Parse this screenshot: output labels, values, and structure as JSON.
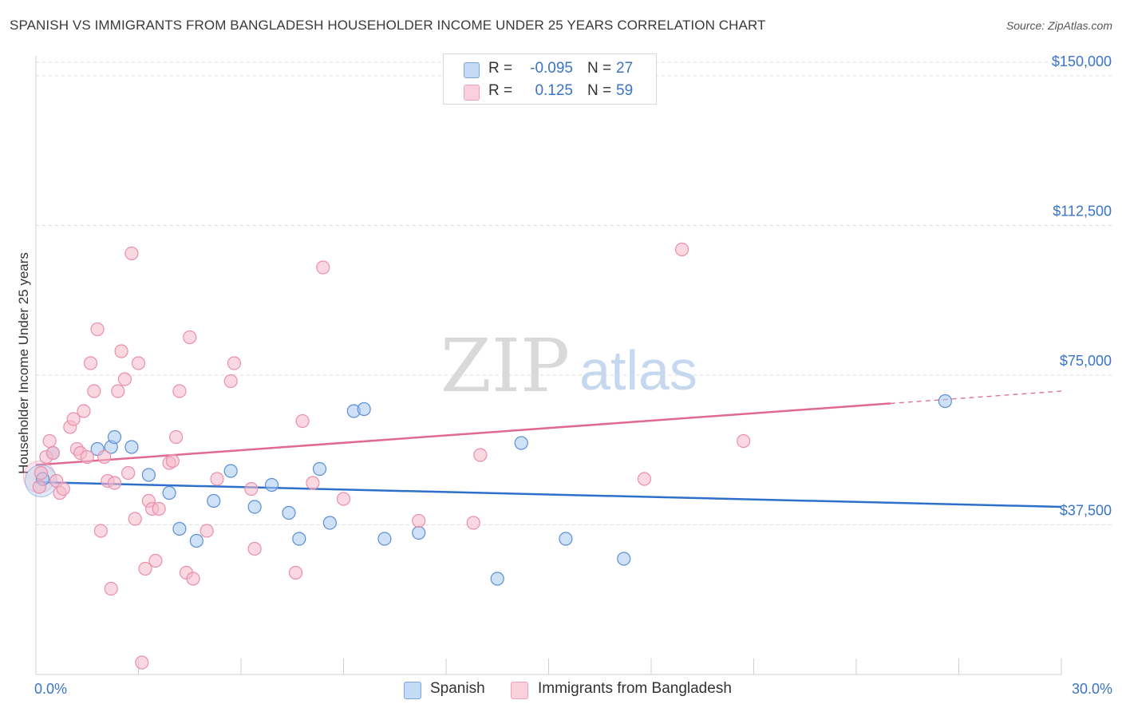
{
  "title": "SPANISH VS IMMIGRANTS FROM BANGLADESH HOUSEHOLDER INCOME UNDER 25 YEARS CORRELATION CHART",
  "source": "Source: ZipAtlas.com",
  "watermark": {
    "zip": "ZIP",
    "atlas": "atlas"
  },
  "legend": {
    "rows": [
      {
        "r_label": "R =",
        "r_value": "-0.095",
        "n_label": "N =",
        "n_value": "27",
        "color": "#a8c8f0"
      },
      {
        "r_label": "R =",
        "r_value": "0.125",
        "n_label": "N =",
        "n_value": "59",
        "color": "#f6b8cb"
      }
    ]
  },
  "bottom_legend": [
    {
      "label": "Spanish",
      "color": "#a8c8f0"
    },
    {
      "label": "Immigrants from Bangladesh",
      "color": "#f6b8cb"
    }
  ],
  "chart_data": {
    "type": "scatter",
    "title": "SPANISH VS IMMIGRANTS FROM BANGLADESH HOUSEHOLDER INCOME UNDER 25 YEARS CORRELATION CHART",
    "xlabel": "",
    "ylabel": "Householder Income Under 25 years",
    "xlim": [
      0,
      30
    ],
    "ylim": [
      0,
      155000
    ],
    "x_tick_labels": [
      "0.0%",
      "30.0%"
    ],
    "y_ticks": [
      37500,
      75000,
      112500,
      150000
    ],
    "y_tick_labels": [
      "$37,500",
      "$75,000",
      "$112,500",
      "$150,000"
    ],
    "series": [
      {
        "name": "Spanish",
        "color": "#a8c8f0",
        "stroke": "#5b8fd6",
        "line_color": "#2f6fcc",
        "trend": {
          "x0": 0,
          "y0": 48200,
          "x1": 30,
          "y1": 42000,
          "solid_until": 30
        },
        "points": [
          [
            0.2,
            49000
          ],
          [
            0.5,
            55500
          ],
          [
            1.8,
            56500
          ],
          [
            2.2,
            57000
          ],
          [
            2.3,
            59500
          ],
          [
            2.8,
            57000
          ],
          [
            3.3,
            50000
          ],
          [
            3.9,
            45500
          ],
          [
            4.2,
            36500
          ],
          [
            4.7,
            33500
          ],
          [
            5.2,
            43500
          ],
          [
            5.7,
            51000
          ],
          [
            6.4,
            42000
          ],
          [
            6.9,
            47500
          ],
          [
            7.4,
            40500
          ],
          [
            7.7,
            34000
          ],
          [
            8.3,
            51500
          ],
          [
            8.6,
            38000
          ],
          [
            9.3,
            66000
          ],
          [
            9.6,
            66500
          ],
          [
            10.2,
            34000
          ],
          [
            11.2,
            35500
          ],
          [
            13.5,
            24000
          ],
          [
            14.2,
            58000
          ],
          [
            15.5,
            34000
          ],
          [
            17.2,
            29000
          ],
          [
            26.6,
            68500
          ]
        ]
      },
      {
        "name": "Immigrants from Bangladesh",
        "color": "#f6b8cb",
        "stroke": "#e98fac",
        "line_color": "#e06992",
        "trend": {
          "x0": 0,
          "y0": 52500,
          "x1": 30,
          "y1": 71000,
          "solid_until": 25
        },
        "points": [
          [
            0.1,
            47000
          ],
          [
            0.15,
            50500
          ],
          [
            0.3,
            54500
          ],
          [
            0.4,
            58500
          ],
          [
            0.5,
            55500
          ],
          [
            0.6,
            48500
          ],
          [
            0.7,
            45500
          ],
          [
            0.8,
            46500
          ],
          [
            1.0,
            62000
          ],
          [
            1.1,
            64000
          ],
          [
            1.2,
            56500
          ],
          [
            1.3,
            55500
          ],
          [
            1.4,
            66000
          ],
          [
            1.5,
            54500
          ],
          [
            1.6,
            78000
          ],
          [
            1.7,
            71000
          ],
          [
            1.8,
            86500
          ],
          [
            1.9,
            36000
          ],
          [
            2.0,
            54500
          ],
          [
            2.1,
            48500
          ],
          [
            2.2,
            21500
          ],
          [
            2.3,
            48000
          ],
          [
            2.4,
            71000
          ],
          [
            2.5,
            81000
          ],
          [
            2.6,
            74000
          ],
          [
            2.7,
            50500
          ],
          [
            2.8,
            105500
          ],
          [
            2.9,
            39000
          ],
          [
            3.0,
            78000
          ],
          [
            3.1,
            3000
          ],
          [
            3.2,
            26500
          ],
          [
            3.3,
            43500
          ],
          [
            3.4,
            41500
          ],
          [
            3.5,
            28500
          ],
          [
            3.6,
            41500
          ],
          [
            3.9,
            53000
          ],
          [
            4.0,
            53500
          ],
          [
            4.1,
            59500
          ],
          [
            4.2,
            71000
          ],
          [
            4.4,
            25500
          ],
          [
            4.5,
            84500
          ],
          [
            4.6,
            24000
          ],
          [
            5.0,
            36000
          ],
          [
            5.3,
            49000
          ],
          [
            5.7,
            73500
          ],
          [
            5.8,
            78000
          ],
          [
            6.3,
            46500
          ],
          [
            6.4,
            31500
          ],
          [
            7.6,
            25500
          ],
          [
            7.8,
            63500
          ],
          [
            8.1,
            48000
          ],
          [
            8.4,
            102000
          ],
          [
            11.2,
            38500
          ],
          [
            12.8,
            38000
          ],
          [
            17.8,
            49000
          ],
          [
            18.9,
            106500
          ],
          [
            20.7,
            58500
          ],
          [
            13.0,
            55000
          ],
          [
            9.0,
            44000
          ]
        ]
      }
    ]
  }
}
